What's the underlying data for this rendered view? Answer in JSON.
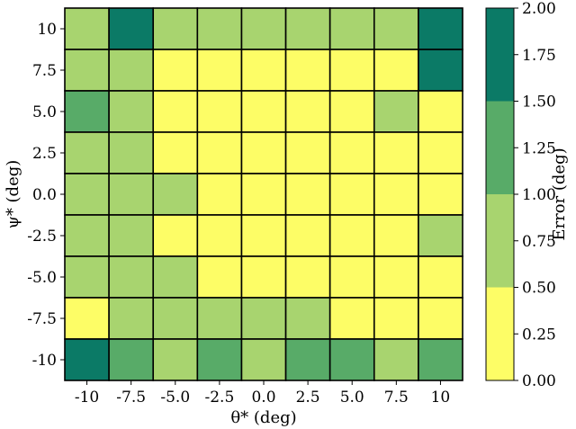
{
  "chart_data": {
    "type": "heatmap",
    "x_ticks": [
      "-10",
      "-7.5",
      "-5.0",
      "-2.5",
      "0.0",
      "2.5",
      "5.0",
      "7.5",
      "10"
    ],
    "y_ticks": [
      "10",
      "7.5",
      "5.0",
      "2.5",
      "0.0",
      "-2.5",
      "-5.0",
      "-7.5",
      "-10"
    ],
    "xlabel": "θ* (deg)",
    "ylabel": "ψ* (deg)",
    "values": [
      [
        0.75,
        1.75,
        0.75,
        0.75,
        0.75,
        0.75,
        0.75,
        0.75,
        1.75
      ],
      [
        0.75,
        0.75,
        0.25,
        0.25,
        0.25,
        0.25,
        0.25,
        0.25,
        1.75
      ],
      [
        1.25,
        0.75,
        0.25,
        0.25,
        0.25,
        0.25,
        0.25,
        0.75,
        0.25
      ],
      [
        0.75,
        0.75,
        0.25,
        0.25,
        0.25,
        0.25,
        0.25,
        0.25,
        0.25
      ],
      [
        0.75,
        0.75,
        0.75,
        0.25,
        0.25,
        0.25,
        0.25,
        0.25,
        0.25
      ],
      [
        0.75,
        0.75,
        0.25,
        0.25,
        0.25,
        0.25,
        0.25,
        0.25,
        0.75
      ],
      [
        0.75,
        0.75,
        0.75,
        0.25,
        0.25,
        0.25,
        0.25,
        0.25,
        0.25
      ],
      [
        0.25,
        0.75,
        0.75,
        0.75,
        0.75,
        0.75,
        0.25,
        0.25,
        0.25
      ],
      [
        1.75,
        1.25,
        0.75,
        1.25,
        0.75,
        1.25,
        1.25,
        0.75,
        1.25
      ]
    ],
    "colorbar": {
      "label": "Error (deg)",
      "ticks": [
        "0.00",
        "0.25",
        "0.50",
        "0.75",
        "1.00",
        "1.25",
        "1.50",
        "1.75",
        "2.00"
      ],
      "range": [
        0,
        2
      ],
      "bins": [
        {
          "from": 0.0,
          "to": 0.5,
          "color": "#fdfd66"
        },
        {
          "from": 0.5,
          "to": 1.0,
          "color": "#a8d46f"
        },
        {
          "from": 1.0,
          "to": 1.5,
          "color": "#58ab68"
        },
        {
          "from": 1.5,
          "to": 2.0,
          "color": "#0b7a66"
        }
      ]
    }
  }
}
